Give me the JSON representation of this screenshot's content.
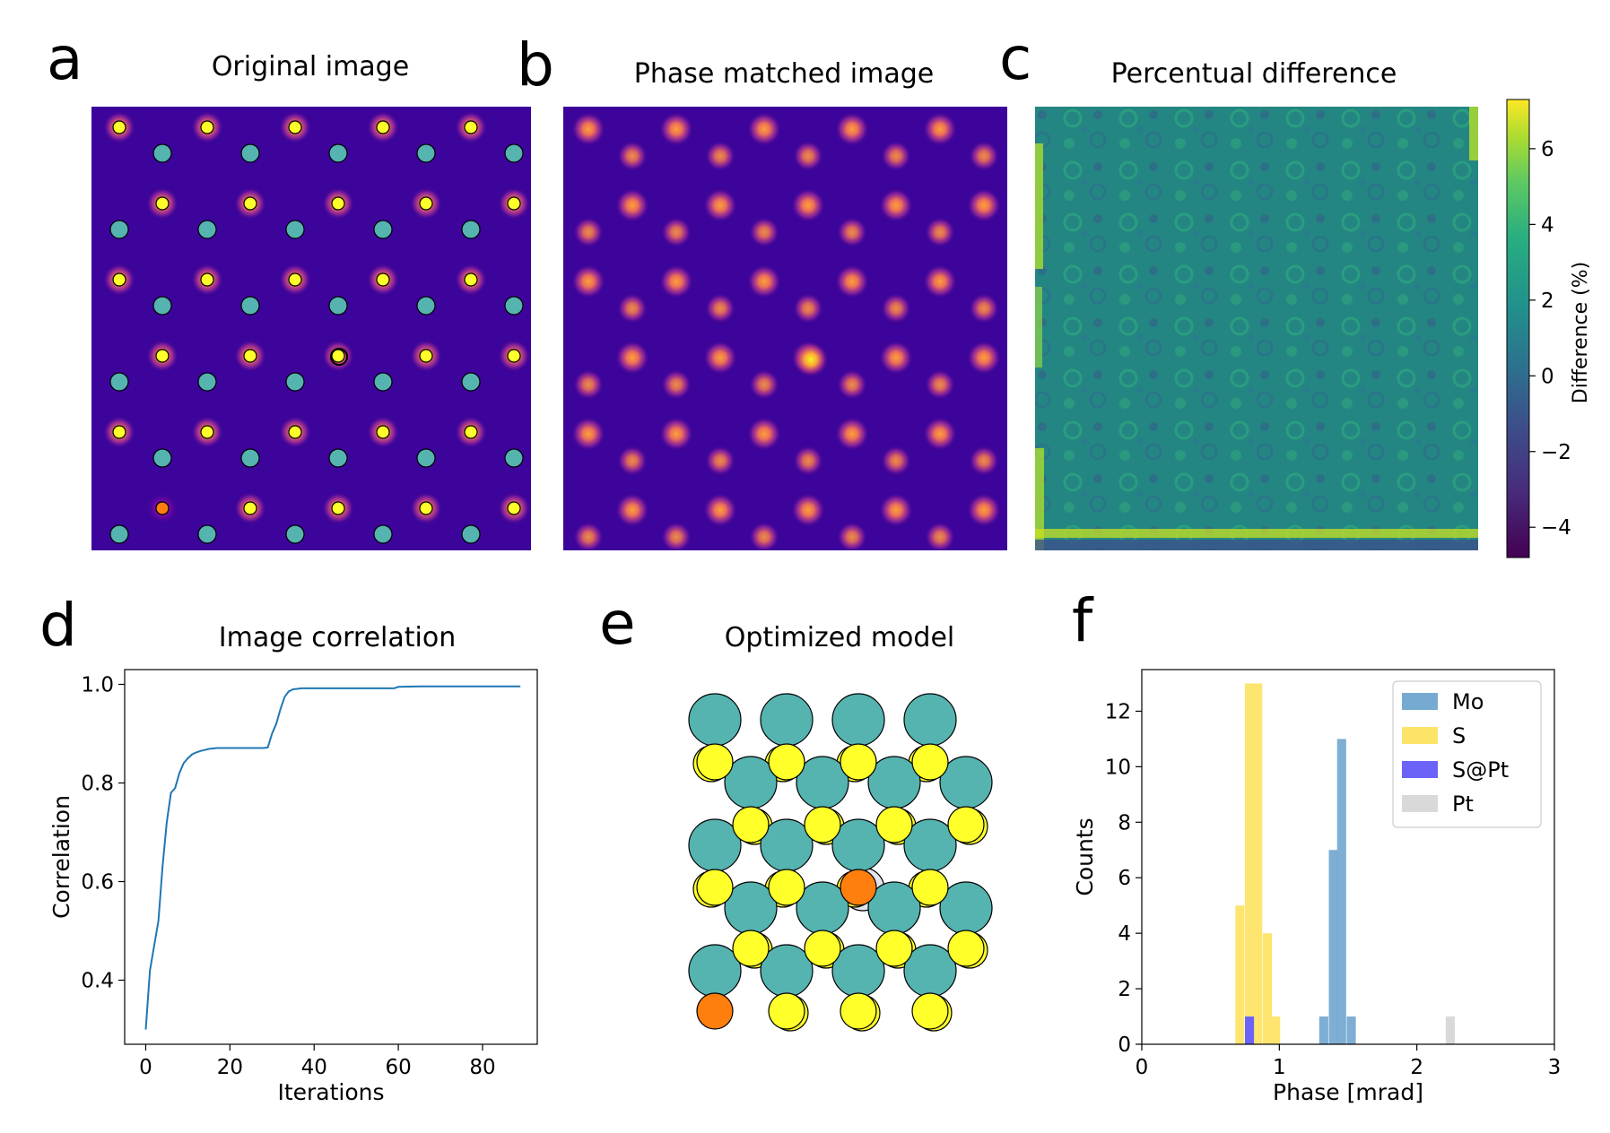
{
  "panels": {
    "a": {
      "letter": "a",
      "title": "Original image"
    },
    "b": {
      "letter": "b",
      "title": "Phase matched image"
    },
    "c": {
      "letter": "c",
      "title": "Percentual difference"
    },
    "d": {
      "letter": "d",
      "title": "Image correlation"
    },
    "e": {
      "letter": "e",
      "title": "Optimized model"
    },
    "f": {
      "letter": "f",
      "title": ""
    }
  },
  "colors": {
    "mo": "#55b3b0",
    "s": "#ffff2a",
    "defect": "#ff7f0e",
    "line": "#1f77b4",
    "hist_mo": "#77aad1",
    "hist_s": "#fde468",
    "hist_spt": "#6b63f8",
    "hist_pt": "#d9d9d9"
  },
  "colorbar": {
    "label": "Difference (%)",
    "ticks": [
      "6",
      "4",
      "2",
      "0",
      "−2",
      "−4"
    ],
    "range": [
      -4.8,
      7.3
    ]
  },
  "chart_data": [
    {
      "panel": "d",
      "type": "line",
      "title": "Image correlation",
      "xlabel": "Iterations",
      "ylabel": "Correlation",
      "xlim": [
        -5,
        93
      ],
      "ylim": [
        0.27,
        1.03
      ],
      "xticks": [
        "0",
        "20",
        "40",
        "60",
        "80"
      ],
      "yticks": [
        "0.4",
        "0.6",
        "0.8",
        "1.0"
      ],
      "x": [
        0,
        1,
        2,
        3,
        4,
        5,
        6,
        7,
        8,
        9,
        10,
        11,
        12,
        13,
        14,
        15,
        16,
        17,
        18,
        19,
        20,
        21,
        22,
        23,
        24,
        25,
        26,
        27,
        28,
        29,
        30,
        31,
        32,
        33,
        34,
        35,
        36,
        37,
        38,
        40,
        45,
        50,
        55,
        59,
        60,
        65,
        70,
        75,
        80,
        85,
        89
      ],
      "y": [
        0.3,
        0.42,
        0.47,
        0.52,
        0.63,
        0.72,
        0.78,
        0.79,
        0.82,
        0.84,
        0.85,
        0.858,
        0.862,
        0.865,
        0.867,
        0.869,
        0.87,
        0.871,
        0.871,
        0.871,
        0.871,
        0.871,
        0.871,
        0.871,
        0.871,
        0.871,
        0.871,
        0.871,
        0.871,
        0.872,
        0.9,
        0.92,
        0.95,
        0.975,
        0.986,
        0.99,
        0.991,
        0.992,
        0.992,
        0.992,
        0.992,
        0.992,
        0.992,
        0.992,
        0.995,
        0.996,
        0.996,
        0.996,
        0.996,
        0.996,
        0.996
      ],
      "grid": false
    },
    {
      "panel": "f",
      "type": "bar",
      "xlabel": "Phase [mrad]",
      "ylabel": "Counts",
      "xlim": [
        0,
        3
      ],
      "ylim": [
        0,
        13.5
      ],
      "xticks": [
        "0",
        "1",
        "2",
        "3"
      ],
      "yticks": [
        "0",
        "2",
        "4",
        "6",
        "8",
        "10",
        "12"
      ],
      "bin_width": 0.066,
      "legend_position": "top-right",
      "series": [
        {
          "name": "Mo",
          "color_key": "hist_mo",
          "bins": [
            [
              1.29,
              1
            ],
            [
              1.36,
              7
            ],
            [
              1.42,
              11
            ],
            [
              1.49,
              1
            ]
          ]
        },
        {
          "name": "S",
          "color_key": "hist_s",
          "bins": [
            [
              0.68,
              5
            ],
            [
              0.75,
              13
            ],
            [
              0.81,
              13
            ],
            [
              0.88,
              4
            ],
            [
              0.94,
              1
            ]
          ]
        },
        {
          "name": "S@Pt",
          "color_key": "hist_spt",
          "bins": [
            [
              0.75,
              1
            ]
          ]
        },
        {
          "name": "Pt",
          "color_key": "hist_pt",
          "bins": [
            [
              2.21,
              1
            ]
          ]
        }
      ]
    }
  ]
}
